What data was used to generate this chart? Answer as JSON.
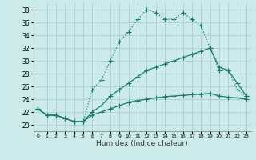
{
  "background_color": "#cceaea",
  "line_color": "#1a7a6a",
  "grid_color": "#aacece",
  "xlabel": "Humidex (Indice chaleur)",
  "xlim": [
    -0.5,
    23.5
  ],
  "ylim": [
    19,
    39
  ],
  "yticks": [
    20,
    22,
    24,
    26,
    28,
    30,
    32,
    34,
    36,
    38
  ],
  "xticks": [
    0,
    1,
    2,
    3,
    4,
    5,
    6,
    7,
    8,
    9,
    10,
    11,
    12,
    13,
    14,
    15,
    16,
    17,
    18,
    19,
    20,
    21,
    22,
    23
  ],
  "series": [
    {
      "x": [
        0,
        1,
        2,
        3,
        4,
        5,
        6,
        7,
        8,
        9,
        10,
        11,
        12,
        13,
        14,
        15,
        16,
        17,
        18,
        19,
        20,
        21,
        22,
        23
      ],
      "y": [
        22.5,
        21.5,
        21.5,
        21.0,
        20.5,
        20.5,
        25.5,
        27.0,
        30.0,
        33.0,
        34.5,
        36.5,
        38.0,
        37.5,
        36.5,
        36.5,
        37.5,
        36.5,
        35.5,
        32.0,
        28.5,
        28.5,
        25.5,
        24.5
      ],
      "marker": "+",
      "markersize": 4,
      "linewidth": 0.9,
      "linestyle": "dotted"
    },
    {
      "x": [
        0,
        1,
        2,
        3,
        4,
        5,
        6,
        7,
        8,
        9,
        10,
        11,
        12,
        13,
        14,
        15,
        16,
        17,
        18,
        19,
        20,
        21,
        22,
        23
      ],
      "y": [
        22.5,
        21.5,
        21.5,
        21.0,
        20.5,
        20.5,
        22.0,
        23.0,
        24.5,
        25.5,
        26.5,
        27.5,
        28.5,
        29.0,
        29.5,
        30.0,
        30.5,
        31.0,
        31.5,
        32.0,
        29.0,
        28.5,
        26.5,
        24.5
      ],
      "marker": "+",
      "markersize": 4,
      "linewidth": 0.9,
      "linestyle": "solid"
    },
    {
      "x": [
        0,
        1,
        2,
        3,
        4,
        5,
        6,
        7,
        8,
        9,
        10,
        11,
        12,
        13,
        14,
        15,
        16,
        17,
        18,
        19,
        20,
        21,
        22,
        23
      ],
      "y": [
        22.5,
        21.5,
        21.5,
        21.0,
        20.5,
        20.5,
        21.5,
        22.0,
        22.5,
        23.0,
        23.5,
        23.8,
        24.0,
        24.2,
        24.4,
        24.5,
        24.6,
        24.7,
        24.8,
        24.9,
        24.5,
        24.3,
        24.2,
        24.0
      ],
      "marker": "+",
      "markersize": 4,
      "linewidth": 0.9,
      "linestyle": "solid"
    }
  ]
}
